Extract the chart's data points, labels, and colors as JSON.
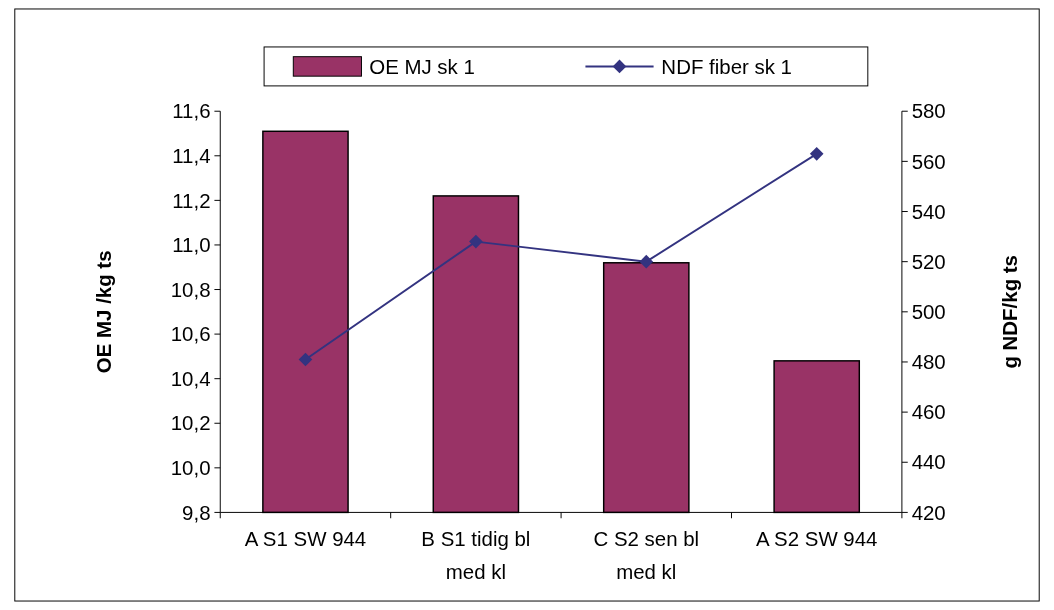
{
  "chart_data": {
    "type": "bar",
    "categories": [
      "A S1 SW 944",
      "B S1 tidig bl med kl",
      "C S2 sen bl med kl",
      "A S2 SW 944"
    ],
    "series": [
      {
        "name": "OE MJ sk 1",
        "color": "#993366",
        "values": [
          11.51,
          11.22,
          10.92,
          10.48
        ]
      },
      {
        "name": "NDF fiber sk 1",
        "type": "line",
        "axis": "y2",
        "color": "#333380",
        "marker": "diamond",
        "values": [
          481,
          528,
          520,
          563
        ]
      }
    ],
    "ylabel": "OE MJ /kg ts",
    "y2label": "g NDF/kg ts",
    "ylim": [
      9.8,
      11.6
    ],
    "yticks": [
      {
        "value": 9.8,
        "label": "9,8"
      },
      {
        "value": 10.0,
        "label": "10,0"
      },
      {
        "value": 10.2,
        "label": "10,2"
      },
      {
        "value": 10.4,
        "label": "10,4"
      },
      {
        "value": 10.6,
        "label": "10,6"
      },
      {
        "value": 10.8,
        "label": "10,8"
      },
      {
        "value": 11.0,
        "label": "11,0"
      },
      {
        "value": 11.2,
        "label": "11,2"
      },
      {
        "value": 11.4,
        "label": "11,4"
      },
      {
        "value": 11.6,
        "label": "11,6"
      }
    ],
    "y2lim": [
      420,
      580
    ],
    "y2ticks": [
      420,
      440,
      460,
      480,
      500,
      520,
      540,
      560,
      580
    ],
    "legend": "top",
    "grid": false
  }
}
